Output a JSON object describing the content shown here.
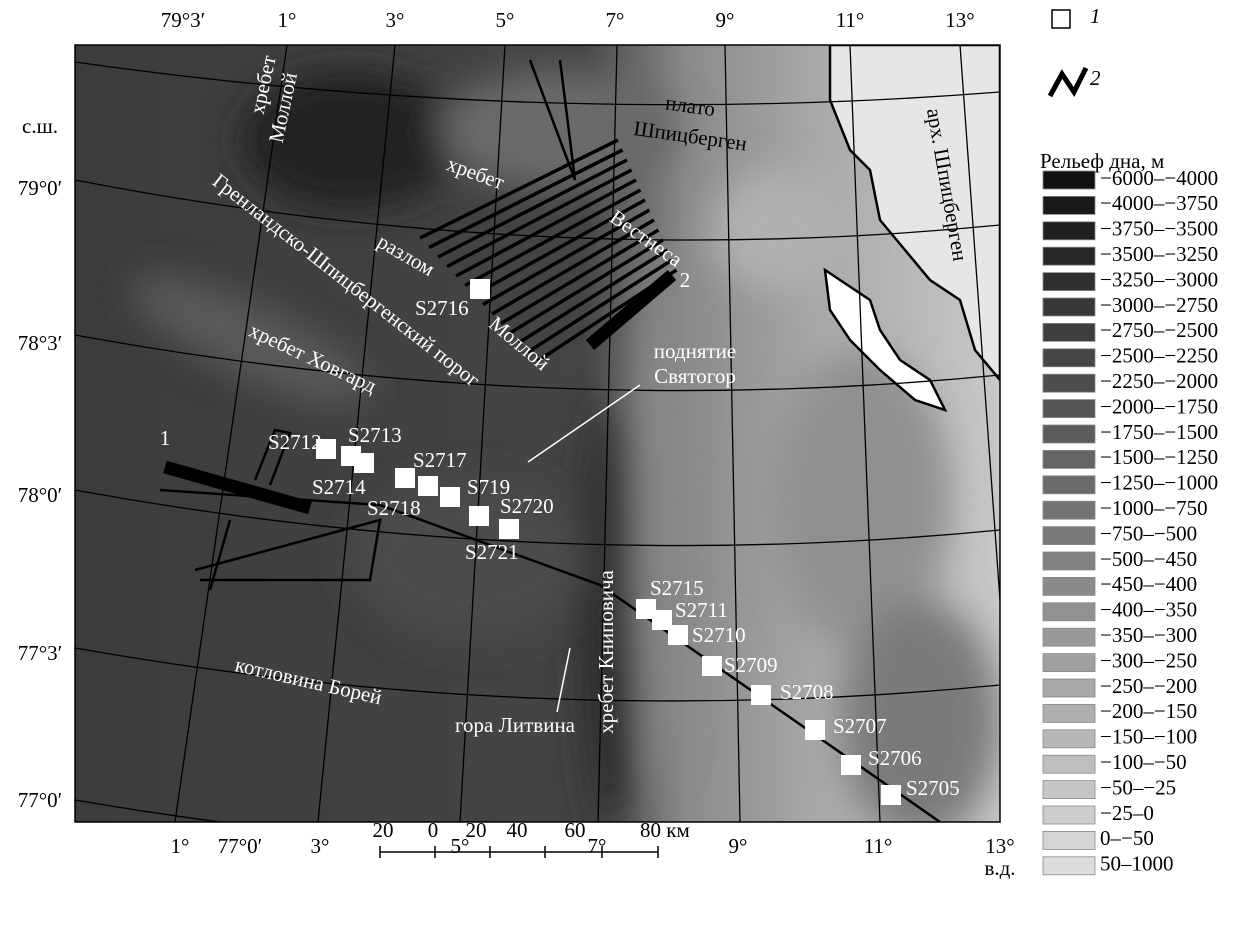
{
  "top_axis": [
    "79°3′",
    "1°",
    "3°",
    "5°",
    "7°",
    "9°",
    "11°",
    "13°"
  ],
  "left_axis": {
    "unit": "с.ш.",
    "labels": [
      "79°0′",
      "78°3′",
      "78°0′",
      "77°3′",
      "77°0′"
    ]
  },
  "bottom_axis": {
    "labels": [
      "1°",
      "77°0′",
      "3°",
      "5°",
      "7°",
      "9°",
      "11°",
      "13°"
    ],
    "unit": "в.д."
  },
  "scale_bar": [
    "20",
    "0",
    "20",
    "40",
    "60",
    "80 км"
  ],
  "legend": {
    "symbols": [
      "1",
      "2"
    ],
    "relief_title": "Рельеф дна, м",
    "relief": [
      {
        "label": "−6000–−4000",
        "color": "#111111"
      },
      {
        "label": "−4000–−3750",
        "color": "#191919"
      },
      {
        "label": "−3750–−3500",
        "color": "#202020"
      },
      {
        "label": "−3500–−3250",
        "color": "#282828"
      },
      {
        "label": "−3250–−3000",
        "color": "#2f2f2f"
      },
      {
        "label": "−3000–−2750",
        "color": "#373737"
      },
      {
        "label": "−2750–−2500",
        "color": "#3e3e3e"
      },
      {
        "label": "−2500–−2250",
        "color": "#464646"
      },
      {
        "label": "−2250–−2000",
        "color": "#4d4d4d"
      },
      {
        "label": "−2000–−1750",
        "color": "#555555"
      },
      {
        "label": "−1750–−1500",
        "color": "#5c5c5c"
      },
      {
        "label": "−1500–−1250",
        "color": "#646464"
      },
      {
        "label": "−1250–−1000",
        "color": "#6b6b6b"
      },
      {
        "label": "−1000–−750",
        "color": "#737373"
      },
      {
        "label": "−750–−500",
        "color": "#7a7a7a"
      },
      {
        "label": "−500–−450",
        "color": "#828282"
      },
      {
        "label": "−450–−400",
        "color": "#8a8a8a"
      },
      {
        "label": "−400–−350",
        "color": "#919191"
      },
      {
        "label": "−350–−300",
        "color": "#999999"
      },
      {
        "label": "−300–−250",
        "color": "#a0a0a0"
      },
      {
        "label": "−250–−200",
        "color": "#a8a8a8"
      },
      {
        "label": "−200–−150",
        "color": "#afafaf"
      },
      {
        "label": "−150–−100",
        "color": "#b7b7b7"
      },
      {
        "label": "−100–−50",
        "color": "#bebebe"
      },
      {
        "label": "−50–−25",
        "color": "#c6c6c6"
      },
      {
        "label": "−25–0",
        "color": "#cdcdcd"
      },
      {
        "label": "0–−50",
        "color": "#d5d5d5"
      },
      {
        "label": "50–1000",
        "color": "#dddddd"
      }
    ]
  },
  "map_labels": [
    "хребет",
    "Моллой",
    "плато",
    "Шпицберген",
    "хребет",
    "разлом",
    "Моллой",
    "Вестнеса",
    "Гренландско-Шпицбергенский порог",
    "хребет Ховгард",
    "поднятие",
    "Святогор",
    "котловина Борей",
    "гора Литвина",
    "хребет Книповича",
    "арх. Шпицберген"
  ],
  "line_labels": [
    "1",
    "2"
  ],
  "stations": [
    "S2716",
    "S2712",
    "S2713",
    "S2714",
    "S2717",
    "S2718",
    "S719",
    "S2720",
    "S2721",
    "S2715",
    "S2711",
    "S2710",
    "S2709",
    "S2708",
    "S2707",
    "S2706",
    "S2705"
  ]
}
